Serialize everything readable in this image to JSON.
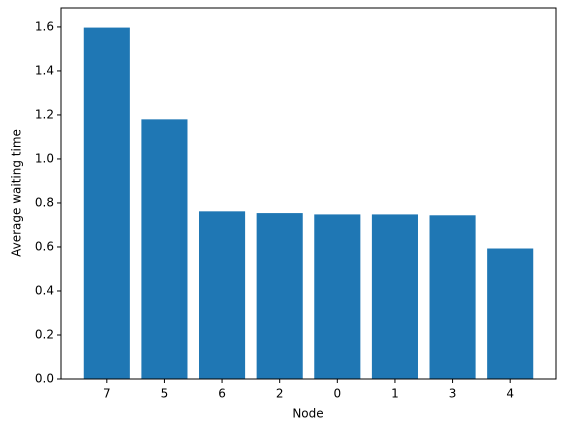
{
  "chart_data": {
    "type": "bar",
    "x_label": "Node",
    "y_label": "Average waiting time",
    "categories": [
      "7",
      "5",
      "6",
      "2",
      "0",
      "1",
      "3",
      "4"
    ],
    "values": [
      1.597,
      1.18,
      0.762,
      0.754,
      0.748,
      0.748,
      0.744,
      0.593
    ],
    "color": "#1f77b4",
    "ylim": [
      0,
      1.686
    ],
    "yticks": [
      {
        "value": 0,
        "label": "0.0"
      },
      0.2,
      0.4,
      0.6,
      0.8,
      {
        "value": 1,
        "label": "1.0"
      },
      1.2,
      1.4,
      1.6
    ],
    "grid": false
  }
}
